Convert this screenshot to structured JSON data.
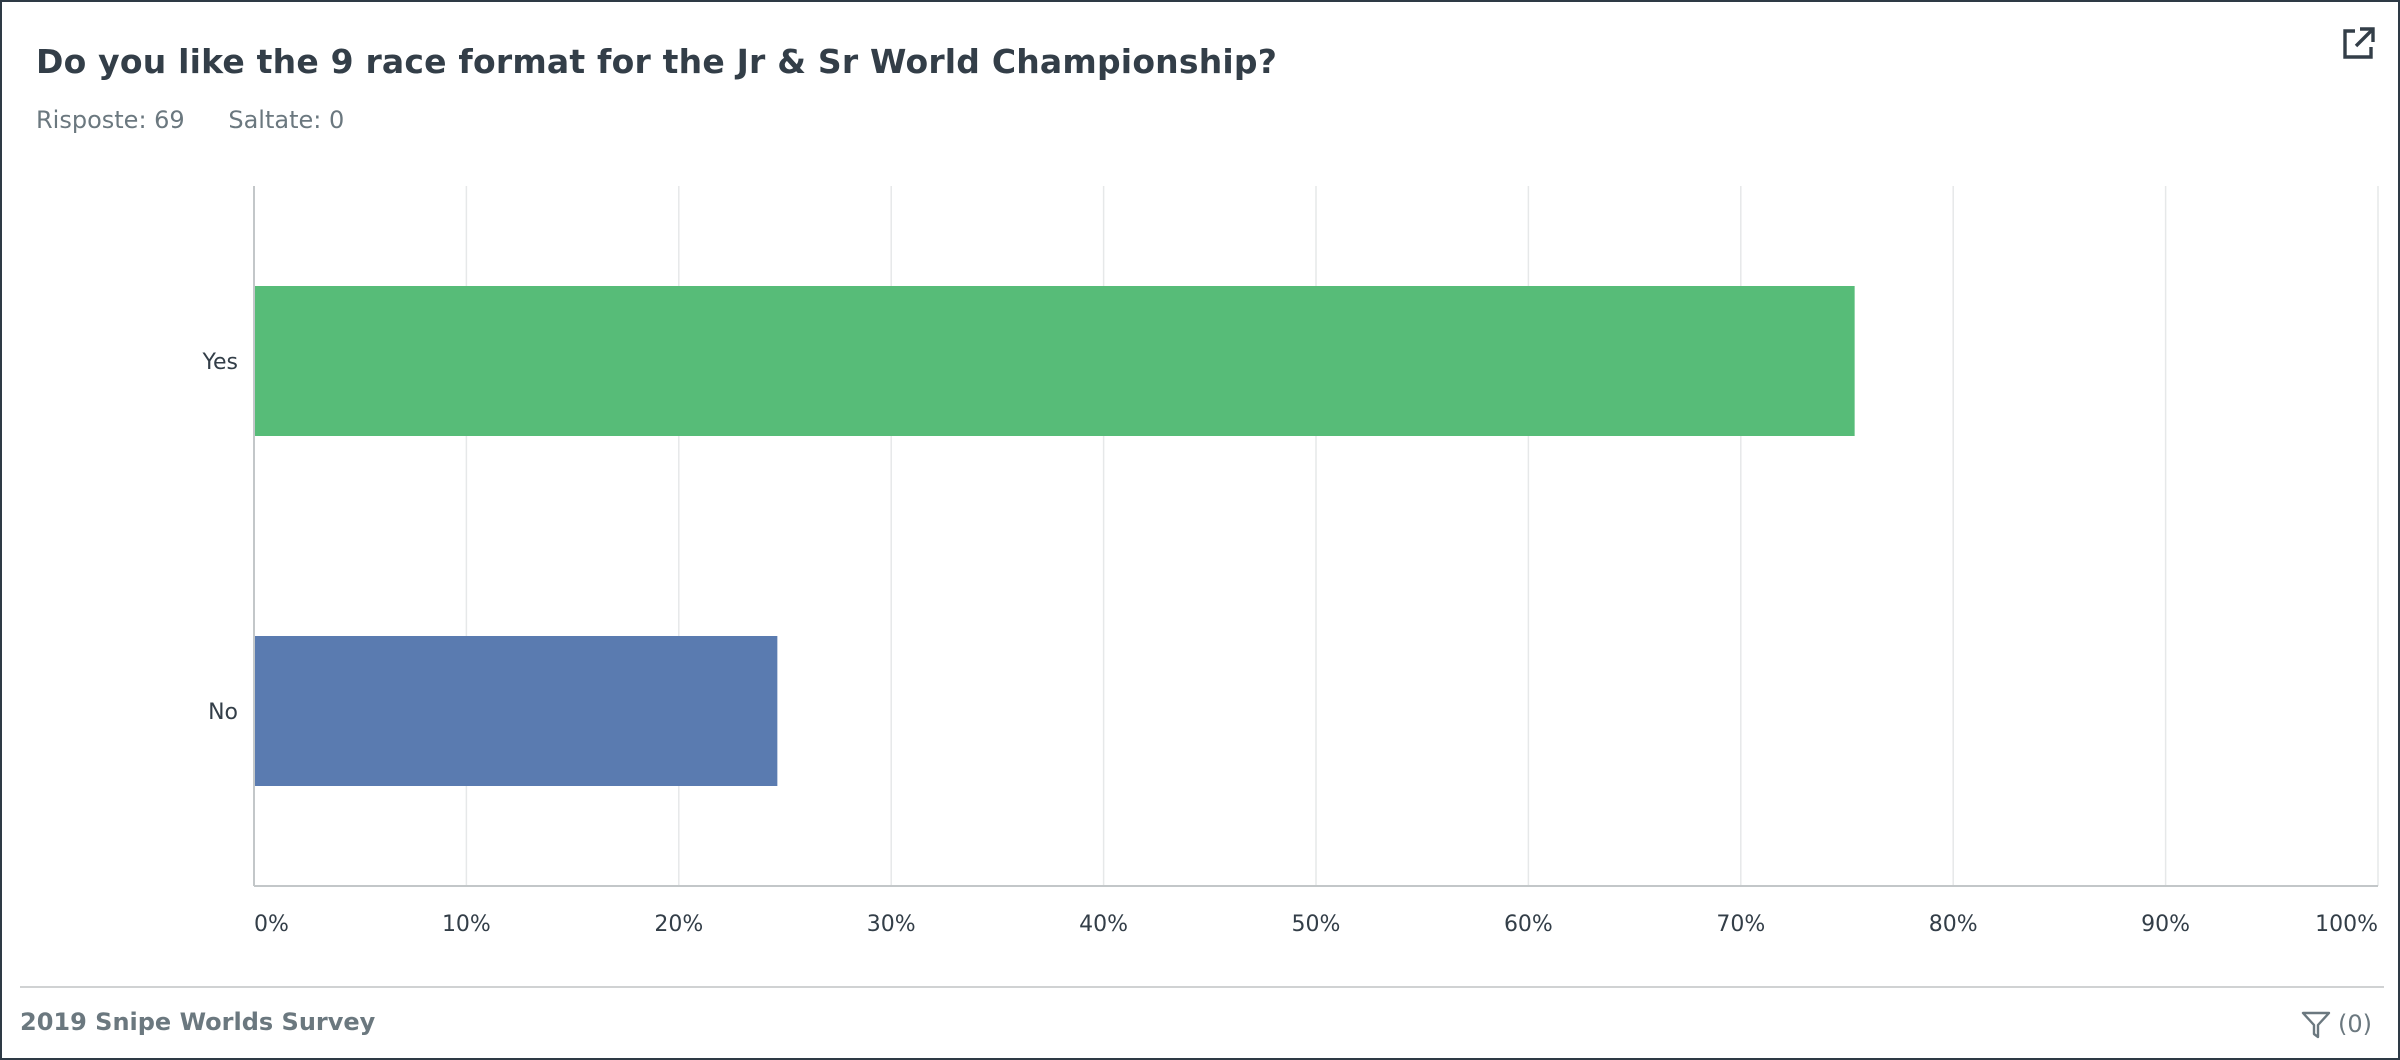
{
  "question": {
    "title": "Do you like the 9 race format for the Jr & Sr World Championship?",
    "responses_label": "Risposte: 69",
    "skipped_label": "Saltate: 0"
  },
  "chart_data": {
    "type": "bar",
    "orientation": "horizontal",
    "categories": [
      "Yes",
      "No"
    ],
    "values": [
      75.36,
      24.64
    ],
    "colors": [
      "#57bc78",
      "#5a7bb0"
    ],
    "xlim": [
      0,
      100
    ],
    "x_ticks": [
      "0%",
      "10%",
      "20%",
      "30%",
      "40%",
      "50%",
      "60%",
      "70%",
      "80%",
      "90%",
      "100%"
    ],
    "grid": true
  },
  "footer": {
    "survey_title": "2019 Snipe Worlds Survey",
    "filter_count": "(0)"
  },
  "icons": {
    "export": "external-link-icon",
    "filter": "filter-icon"
  }
}
